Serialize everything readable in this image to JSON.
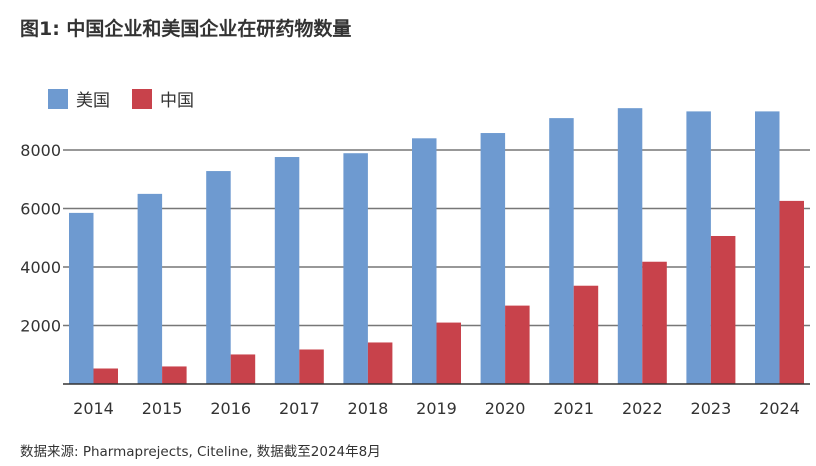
{
  "title": "图1: 中国企业和美国企业在研药物数量",
  "source": "数据来源: Pharmaprejects, Citeline, 数据截至2024年8月",
  "chart_data": {
    "type": "bar",
    "title": "图1: 中国企业和美国企业在研药物数量",
    "categories": [
      "2014",
      "2015",
      "2016",
      "2017",
      "2018",
      "2019",
      "2020",
      "2021",
      "2022",
      "2023",
      "2024"
    ],
    "series": [
      {
        "name": "美国",
        "color": "#6e9ad0",
        "values": [
          5850,
          6500,
          7280,
          7760,
          7890,
          8400,
          8580,
          9090,
          9430,
          9320,
          9320
        ]
      },
      {
        "name": "中国",
        "color": "#c8424b",
        "values": [
          530,
          600,
          1010,
          1180,
          1420,
          2100,
          2680,
          3360,
          4180,
          5060,
          6260
        ]
      }
    ],
    "yticks": [
      2000,
      4000,
      6000,
      8000
    ],
    "ylim": [
      0,
      9500
    ],
    "grid": true,
    "legend": "top-left"
  }
}
